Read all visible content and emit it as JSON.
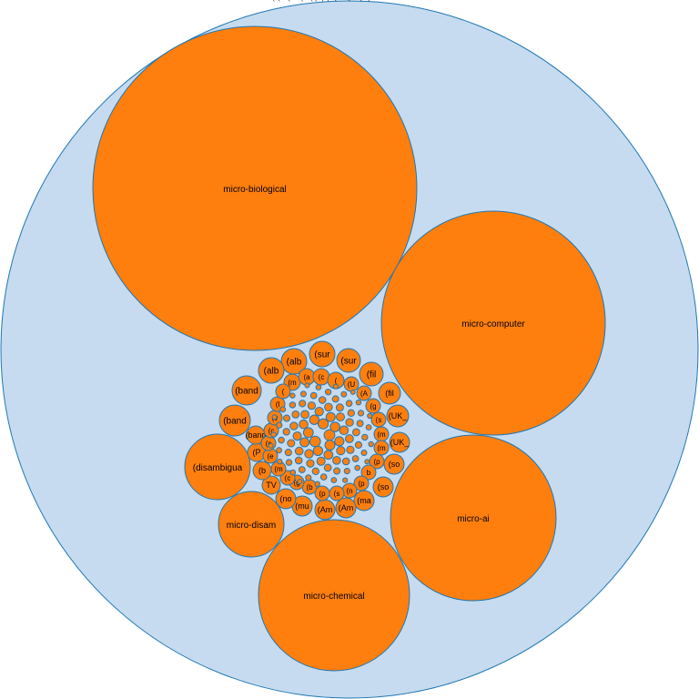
{
  "chart_data": {
    "type": "packed-bubble",
    "colors": {
      "leaf_fill": "#ff7f0e",
      "stroke": "#1f77b4",
      "container_fill": "#c6dbef"
    },
    "large_nodes": [
      {
        "id": "micro-biological",
        "label": "micro-biological"
      },
      {
        "id": "micro-computer",
        "label": "micro-computer"
      },
      {
        "id": "micro-ai",
        "label": "micro-ai"
      },
      {
        "id": "micro-chemical",
        "label": "micro-chemical"
      },
      {
        "id": "micro-disam",
        "label": "micro-disam"
      },
      {
        "id": "disambigua",
        "label": "(disambigua"
      }
    ],
    "ring_labels": [
      "(sur",
      "(sur",
      "(fil",
      "(fil",
      "(UK_",
      "(UK_",
      "(so",
      "(so",
      "(ma",
      "(Am",
      "(Am",
      "(mu",
      "(no",
      "TV",
      "(b",
      "(P",
      "(band",
      "(band",
      "(alb",
      "(alb",
      "(m",
      "(a",
      "(c",
      "(",
      "(U",
      "(A",
      "(g",
      "(s",
      "(m",
      "(m",
      "(p",
      "b",
      "(p",
      "(n",
      "(s",
      "(p",
      "(b",
      "(g",
      "(c",
      "(m",
      "(e",
      "(c",
      "(c",
      "(v",
      "(l",
      "("
    ],
    "small_node_labels": [
      "(",
      "(",
      "(",
      "(",
      "(",
      "(",
      "(",
      "(",
      "(",
      "(",
      "(",
      "("
    ]
  }
}
